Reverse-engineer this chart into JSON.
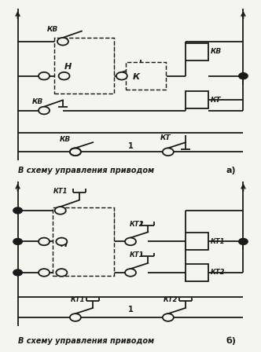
{
  "fig_width": 3.32,
  "fig_height": 4.48,
  "dpi": 100,
  "bg_color": "#f5f5f0",
  "line_color": "#1a1a1a",
  "lw": 1.3,
  "label_a": "а)",
  "label_b": "б)",
  "text_bottom_a": "В схему управления приводом",
  "text_bottom_b": "В схему управления приводом"
}
